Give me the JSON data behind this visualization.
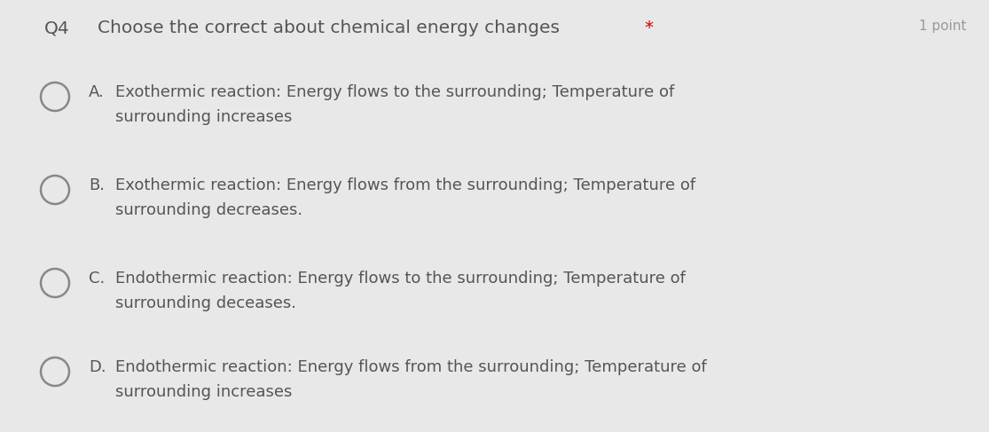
{
  "background_color": "#e8e8e8",
  "title_q": "Q4",
  "title_text": "Choose the correct about chemical energy changes ",
  "title_star": "*",
  "points_text": "1 point",
  "title_fontsize": 14.5,
  "body_fontsize": 13,
  "text_color": "#555555",
  "star_color": "#cc0000",
  "points_color": "#999999",
  "options": [
    {
      "label": "A.",
      "line1": "Exothermic reaction: Energy flows to the surrounding; Temperature of",
      "line2": "surrounding increases"
    },
    {
      "label": "B.",
      "line1": "Exothermic reaction: Energy flows from the surrounding; Temperature of",
      "line2": "surrounding decreases."
    },
    {
      "label": "C.",
      "line1": "Endothermic reaction: Energy flows to the surrounding; Temperature of",
      "line2": "surrounding deceases."
    },
    {
      "label": "D.",
      "line1": "Endothermic reaction: Energy flows from the surrounding; Temperature of",
      "line2": "surrounding increases"
    }
  ],
  "circle_color": "#888888",
  "circle_linewidth": 1.8,
  "figsize": [
    11.15,
    4.87
  ],
  "dpi": 100
}
